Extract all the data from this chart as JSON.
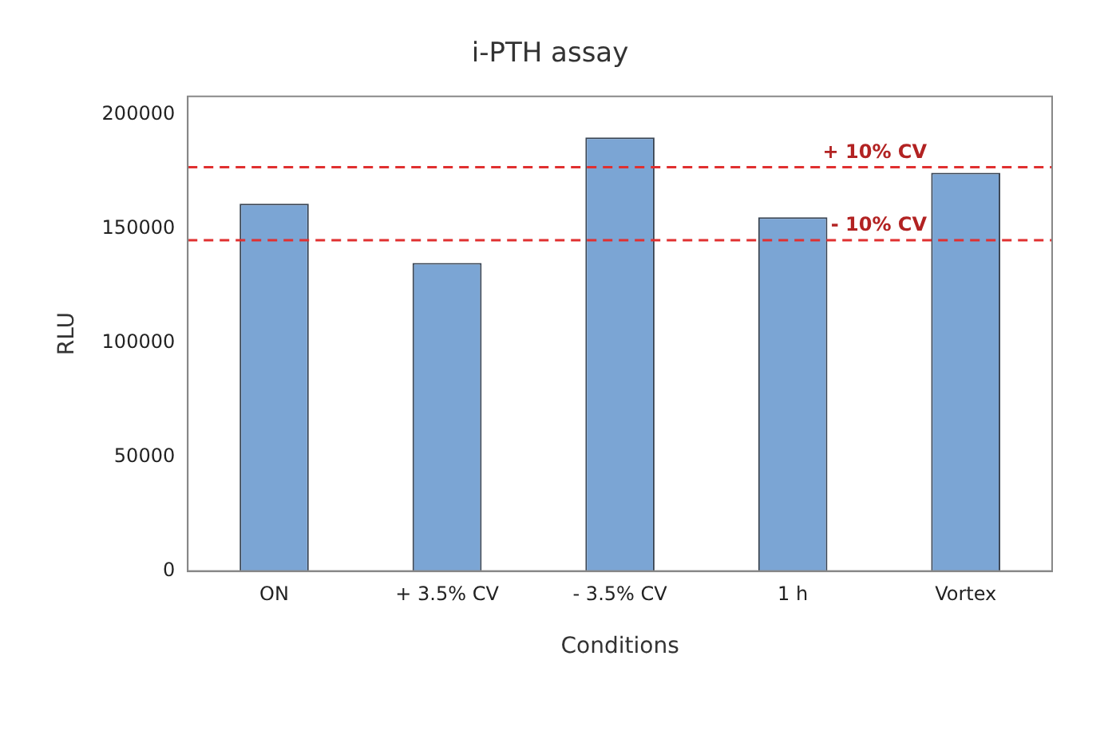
{
  "chart_data": {
    "type": "bar",
    "title": "i-PTH assay",
    "xlabel": "Conditions",
    "ylabel": "RLU",
    "categories": [
      "ON",
      "+ 3.5% CV",
      "- 3.5% CV",
      "1 h",
      "Vortex"
    ],
    "values": [
      161000,
      135000,
      190000,
      155000,
      174500
    ],
    "color": "#7ba5d4",
    "ylim": [
      0,
      208000
    ],
    "yticks": [
      0,
      50000,
      100000,
      150000,
      200000
    ],
    "grid": false,
    "legend": false,
    "ref_lines": [
      {
        "axis": "y",
        "value": 177000,
        "label": "+ 10% CV",
        "color": "#e03030",
        "line_style": "dashed"
      },
      {
        "axis": "y",
        "value": 145000,
        "label": "- 10% CV",
        "color": "#e03030",
        "line_style": "dashed"
      }
    ]
  }
}
